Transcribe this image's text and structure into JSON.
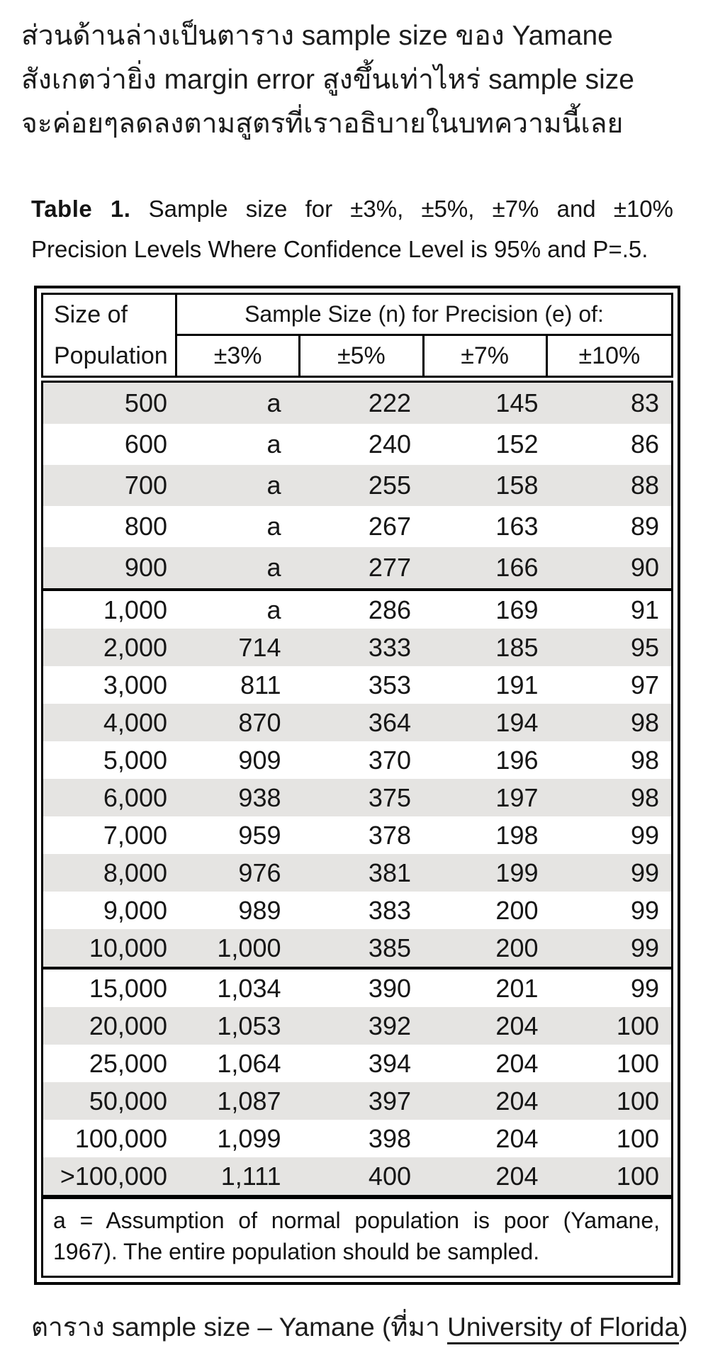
{
  "intro": {
    "lines": [
      "ส่วนด้านล่างเป็นตาราง sample size ของ Yamane",
      "สังเกตว่ายิ่ง margin error สูงขึ้นเท่าไหร่ sample size",
      "จะค่อยๆลดลงตามสูตรที่เราอธิบายในบทความนี้เลย"
    ]
  },
  "table_caption": {
    "label": "Table 1.",
    "text": "Sample size for ±3%, ±5%, ±7% and ±10% Precision Levels Where Confidence Level is 95% and P=.5."
  },
  "table": {
    "col1_header_line1": "Size of",
    "col1_header_line2": "Population",
    "span_header": "Sample Size (n) for Precision (e) of:",
    "precision_headers": [
      "±3%",
      "±5%",
      "±7%",
      "±10%"
    ],
    "groups": [
      {
        "start_shaded": true,
        "rows": [
          [
            "500",
            "a",
            "222",
            "145",
            "83"
          ],
          [
            "600",
            "a",
            "240",
            "152",
            "86"
          ],
          [
            "700",
            "a",
            "255",
            "158",
            "88"
          ],
          [
            "800",
            "a",
            "267",
            "163",
            "89"
          ],
          [
            "900",
            "a",
            "277",
            "166",
            "90"
          ]
        ]
      },
      {
        "start_shaded": false,
        "rows": [
          [
            "1,000",
            "a",
            "286",
            "169",
            "91"
          ],
          [
            "2,000",
            "714",
            "333",
            "185",
            "95"
          ],
          [
            "3,000",
            "811",
            "353",
            "191",
            "97"
          ],
          [
            "4,000",
            "870",
            "364",
            "194",
            "98"
          ],
          [
            "5,000",
            "909",
            "370",
            "196",
            "98"
          ],
          [
            "6,000",
            "938",
            "375",
            "197",
            "98"
          ],
          [
            "7,000",
            "959",
            "378",
            "198",
            "99"
          ],
          [
            "8,000",
            "976",
            "381",
            "199",
            "99"
          ],
          [
            "9,000",
            "989",
            "383",
            "200",
            "99"
          ],
          [
            "10,000",
            "1,000",
            "385",
            "200",
            "99"
          ]
        ]
      },
      {
        "start_shaded": false,
        "rows": [
          [
            "15,000",
            "1,034",
            "390",
            "201",
            "99"
          ],
          [
            "20,000",
            "1,053",
            "392",
            "204",
            "100"
          ],
          [
            "25,000",
            "1,064",
            "394",
            "204",
            "100"
          ],
          [
            "50,000",
            "1,087",
            "397",
            "204",
            "100"
          ],
          [
            "100,000",
            "1,099",
            "398",
            "204",
            "100"
          ],
          [
            ">100,000",
            "1,111",
            "400",
            "204",
            "100"
          ]
        ]
      }
    ],
    "footnote": "a = Assumption of normal population is poor (Yamane, 1967).  The entire population should be sampled."
  },
  "bottom_caption": {
    "prefix": "ตาราง sample size – Yamane (ที่มา ",
    "link_text": "University of Florida",
    "suffix": ")"
  },
  "colors": {
    "row_shade": "#e5e4e2",
    "border": "#000000",
    "text": "#161616"
  }
}
